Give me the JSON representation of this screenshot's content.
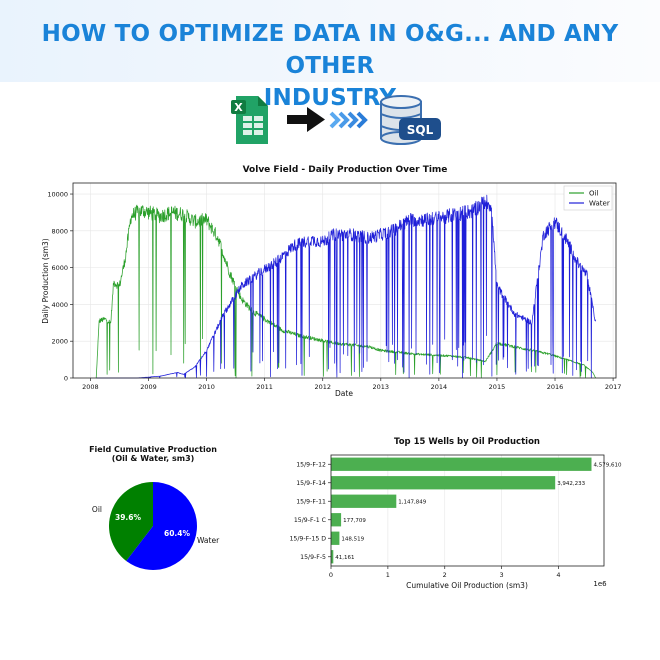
{
  "header": {
    "title_line1": "HOW TO OPTIMIZE DATA IN O&G... AND ANY OTHER",
    "title_line2": "INDUSTRY"
  },
  "icons": {
    "excel": {
      "name": "excel-icon",
      "letter": "X"
    },
    "arrow": "right-arrow-icon",
    "chevrons": "triple-chevron-icon",
    "database": {
      "name": "sql-database-icon",
      "label": "SQL"
    }
  },
  "colors": {
    "oil": "#2ca02c",
    "water": "#1f1fd8",
    "pie_oil": "#008000",
    "pie_water": "#0000ff",
    "bars": "#4caf50",
    "title_blue": "#1a83d8"
  },
  "chart_data": [
    {
      "type": "line",
      "title": "Volve Field - Daily Production Over Time",
      "xlabel": "Date",
      "ylabel": "Daily Production (sm3)",
      "xlim": [
        2007.7,
        2017.05
      ],
      "ylim": [
        0,
        10600
      ],
      "x_ticks": [
        2008,
        2009,
        2010,
        2011,
        2012,
        2013,
        2014,
        2015,
        2016,
        2017
      ],
      "y_ticks": [
        0,
        2000,
        4000,
        6000,
        8000,
        10000
      ],
      "grid": true,
      "legend": "top-right",
      "series": [
        {
          "name": "Oil",
          "x": [
            2008.1,
            2008.15,
            2008.25,
            2008.35,
            2008.4,
            2008.5,
            2008.6,
            2008.7,
            2008.8,
            2008.9,
            2009.0,
            2009.2,
            2009.4,
            2009.6,
            2009.8,
            2010.0,
            2010.2,
            2010.4,
            2010.6,
            2010.8,
            2011.0,
            2011.3,
            2011.6,
            2011.9,
            2012.2,
            2012.5,
            2012.8,
            2013.0,
            2013.3,
            2013.6,
            2013.9,
            2014.2,
            2014.5,
            2014.8,
            2015.0,
            2015.3,
            2015.6,
            2015.9,
            2016.1,
            2016.3,
            2016.5,
            2016.65,
            2016.7
          ],
          "values": [
            0,
            3100,
            3200,
            3000,
            5200,
            5000,
            6500,
            8800,
            9000,
            9100,
            9000,
            8800,
            9000,
            8900,
            8500,
            8600,
            7600,
            5700,
            4300,
            3600,
            3200,
            2600,
            2300,
            2100,
            1900,
            1800,
            1700,
            1500,
            1400,
            1300,
            1250,
            1200,
            1100,
            900,
            1900,
            1700,
            1500,
            1300,
            1100,
            900,
            700,
            300,
            0
          ]
        },
        {
          "name": "Water",
          "x": [
            2008.1,
            2008.8,
            2009.2,
            2009.5,
            2009.6,
            2009.8,
            2010.0,
            2010.3,
            2010.6,
            2010.9,
            2011.2,
            2011.5,
            2011.8,
            2012.0,
            2012.2,
            2012.5,
            2012.8,
            2013.0,
            2013.2,
            2013.5,
            2013.8,
            2014.0,
            2014.3,
            2014.6,
            2014.8,
            2014.9,
            2015.0,
            2015.3,
            2015.6,
            2015.8,
            2016.0,
            2016.2,
            2016.4,
            2016.55,
            2016.7
          ],
          "values": [
            0,
            0,
            100,
            300,
            200,
            600,
            1500,
            3500,
            5000,
            5700,
            6300,
            7200,
            7500,
            7400,
            7800,
            7800,
            7600,
            7800,
            8000,
            8600,
            8600,
            8700,
            8900,
            9100,
            9600,
            9400,
            5000,
            3500,
            3000,
            7800,
            8500,
            7500,
            6200,
            5600,
            3000
          ]
        }
      ]
    },
    {
      "type": "pie",
      "title": "Field Cumulative Production\n(Oil & Water, sm3)",
      "title_line1": "Field Cumulative Production",
      "title_line2": "(Oil & Water, sm3)",
      "labels": [
        "Oil",
        "Water"
      ],
      "values": [
        39.6,
        60.4
      ],
      "pct_labels": [
        "39.6%",
        "60.4%"
      ]
    },
    {
      "type": "bar",
      "orientation": "horizontal",
      "title": "Top 15 Wells by Oil Production",
      "xlabel": "Cumulative Oil Production (sm3)",
      "x_scale_label": "1e6",
      "xlim": [
        0,
        4800000
      ],
      "x_ticks": [
        0,
        1,
        2,
        3,
        4
      ],
      "categories": [
        "15/9-F-12",
        "15/9-F-14",
        "15/9-F-11",
        "15/9-F-1 C",
        "15/9-F-15 D",
        "15/9-F-5"
      ],
      "values": [
        4579610,
        3942233,
        1147849,
        177709,
        148519,
        41161
      ],
      "value_labels": [
        "4,579,610",
        "3,942,233",
        "1,147,849",
        "177,709",
        "148,519",
        "41,161"
      ]
    }
  ]
}
